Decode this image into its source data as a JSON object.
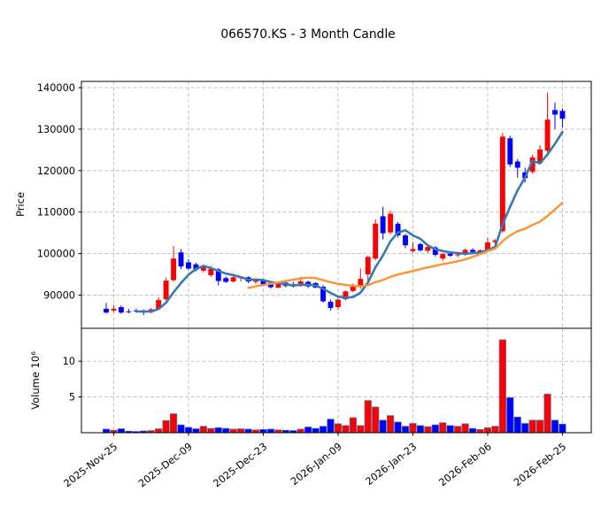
{
  "title": "066570.KS - 3 Month Candle",
  "price_axis": {
    "label": "Price",
    "tick_values": [
      90000,
      100000,
      110000,
      120000,
      130000,
      140000
    ],
    "range": [
      82000,
      141500
    ]
  },
  "volume_axis": {
    "label": "Volume  10⁶",
    "tick_values": [
      5,
      10
    ],
    "range": [
      0,
      14.6
    ],
    "unit": "millions"
  },
  "x_axis": {
    "tick_indices": [
      1,
      11,
      21,
      31,
      41,
      51,
      61
    ],
    "tick_labels": [
      "2025-Nov-25",
      "2025-Dec-09",
      "2025-Dec-23",
      "2026-Jan-09",
      "2026-Jan-23",
      "2026-Feb-06",
      "2026-Feb-25"
    ],
    "label_rotation_deg": -38
  },
  "colors": {
    "up": "#ff0000",
    "down": "#0000ff",
    "ma_fast": "#3778b5",
    "ma_slow": "#ff9233",
    "grid": "#b9b9b9",
    "frame": "#000000",
    "volume_edge": "#4a7aaa",
    "background": "#ffffff"
  },
  "moving_averages": [
    {
      "name": "ma-5day",
      "window": 5,
      "color_key": "ma_fast",
      "width": 2.6
    },
    {
      "name": "ma-20day",
      "window": 20,
      "color_key": "ma_slow",
      "width": 2.4
    }
  ],
  "chart_data": {
    "type": "candlestick",
    "title": "066570.KS - 3 Month Candle",
    "ylabel": "Price",
    "ylabel_volume": "Volume  10⁶",
    "grid": "dashed",
    "panels": [
      "price",
      "volume"
    ],
    "days": [
      {
        "date": "2025-11-24",
        "open": 86700,
        "high": 88100,
        "low": 85600,
        "close": 85800,
        "volume_m": 0.5
      },
      {
        "date": "2025-11-25",
        "open": 86300,
        "high": 87600,
        "low": 85900,
        "close": 86700,
        "volume_m": 0.35
      },
      {
        "date": "2025-11-26",
        "open": 87100,
        "high": 87500,
        "low": 85500,
        "close": 85800,
        "volume_m": 0.55
      },
      {
        "date": "2025-11-27",
        "open": 86100,
        "high": 86700,
        "low": 85600,
        "close": 85900,
        "volume_m": 0.22
      },
      {
        "date": "2025-11-28",
        "open": 86300,
        "high": 86700,
        "low": 85900,
        "close": 86100,
        "volume_m": 0.18
      },
      {
        "date": "2025-12-01",
        "open": 86200,
        "high": 86500,
        "low": 85200,
        "close": 85800,
        "volume_m": 0.25
      },
      {
        "date": "2025-12-02",
        "open": 85900,
        "high": 86900,
        "low": 85600,
        "close": 86600,
        "volume_m": 0.3
      },
      {
        "date": "2025-12-03",
        "open": 86700,
        "high": 89500,
        "low": 86400,
        "close": 88800,
        "volume_m": 0.55
      },
      {
        "date": "2025-12-04",
        "open": 89000,
        "high": 94200,
        "low": 88700,
        "close": 93500,
        "volume_m": 1.7
      },
      {
        "date": "2025-12-05",
        "open": 93600,
        "high": 101800,
        "low": 93300,
        "close": 98800,
        "volume_m": 2.65
      },
      {
        "date": "2025-12-08",
        "open": 100300,
        "high": 101100,
        "low": 96300,
        "close": 96900,
        "volume_m": 1.1
      },
      {
        "date": "2025-12-09",
        "open": 97900,
        "high": 98700,
        "low": 96000,
        "close": 96400,
        "volume_m": 0.75
      },
      {
        "date": "2025-12-10",
        "open": 97400,
        "high": 97800,
        "low": 95700,
        "close": 96100,
        "volume_m": 0.55
      },
      {
        "date": "2025-12-11",
        "open": 95900,
        "high": 97400,
        "low": 95500,
        "close": 96900,
        "volume_m": 0.9
      },
      {
        "date": "2025-12-12",
        "open": 94800,
        "high": 97000,
        "low": 94400,
        "close": 96300,
        "volume_m": 0.6
      },
      {
        "date": "2025-12-15",
        "open": 96200,
        "high": 96500,
        "low": 92300,
        "close": 93400,
        "volume_m": 0.7
      },
      {
        "date": "2025-12-16",
        "open": 94100,
        "high": 94500,
        "low": 92900,
        "close": 93200,
        "volume_m": 0.6
      },
      {
        "date": "2025-12-17",
        "open": 93300,
        "high": 94800,
        "low": 93000,
        "close": 94300,
        "volume_m": 0.5
      },
      {
        "date": "2025-12-18",
        "open": 94100,
        "high": 94600,
        "low": 93300,
        "close": 94400,
        "volume_m": 0.55
      },
      {
        "date": "2025-12-19",
        "open": 94300,
        "high": 94500,
        "low": 92900,
        "close": 93300,
        "volume_m": 0.5
      },
      {
        "date": "2025-12-22",
        "open": 93200,
        "high": 93900,
        "low": 92700,
        "close": 93600,
        "volume_m": 0.4
      },
      {
        "date": "2025-12-23",
        "open": 93700,
        "high": 93900,
        "low": 92100,
        "close": 92500,
        "volume_m": 0.45
      },
      {
        "date": "2025-12-24",
        "open": 92600,
        "high": 93100,
        "low": 91600,
        "close": 91900,
        "volume_m": 0.5
      },
      {
        "date": "2025-12-26",
        "open": 91800,
        "high": 93300,
        "low": 91600,
        "close": 92900,
        "volume_m": 0.4
      },
      {
        "date": "2025-12-29",
        "open": 93000,
        "high": 93200,
        "low": 91900,
        "close": 92200,
        "volume_m": 0.35
      },
      {
        "date": "2025-12-30",
        "open": 92400,
        "high": 93100,
        "low": 91800,
        "close": 92100,
        "volume_m": 0.3
      },
      {
        "date": "2026-01-02",
        "open": 92200,
        "high": 94400,
        "low": 92000,
        "close": 93300,
        "volume_m": 0.5
      },
      {
        "date": "2026-01-05",
        "open": 93200,
        "high": 93500,
        "low": 91700,
        "close": 92100,
        "volume_m": 0.8
      },
      {
        "date": "2026-01-06",
        "open": 92900,
        "high": 93100,
        "low": 91700,
        "close": 91800,
        "volume_m": 0.6
      },
      {
        "date": "2026-01-07",
        "open": 92000,
        "high": 92400,
        "low": 88200,
        "close": 88500,
        "volume_m": 0.9
      },
      {
        "date": "2026-01-08",
        "open": 88400,
        "high": 88900,
        "low": 86300,
        "close": 86900,
        "volume_m": 1.9
      },
      {
        "date": "2026-01-09",
        "open": 87100,
        "high": 89300,
        "low": 86400,
        "close": 88900,
        "volume_m": 1.25
      },
      {
        "date": "2026-01-12",
        "open": 89000,
        "high": 91200,
        "low": 88700,
        "close": 90900,
        "volume_m": 1.0
      },
      {
        "date": "2026-01-13",
        "open": 91000,
        "high": 92800,
        "low": 90700,
        "close": 92400,
        "volume_m": 2.1
      },
      {
        "date": "2026-01-14",
        "open": 92200,
        "high": 96400,
        "low": 91500,
        "close": 93900,
        "volume_m": 1.0
      },
      {
        "date": "2026-01-15",
        "open": 95000,
        "high": 99500,
        "low": 92200,
        "close": 99200,
        "volume_m": 4.5
      },
      {
        "date": "2026-01-16",
        "open": 98800,
        "high": 108300,
        "low": 98400,
        "close": 107200,
        "volume_m": 3.6
      },
      {
        "date": "2026-01-19",
        "open": 109000,
        "high": 111300,
        "low": 103400,
        "close": 104900,
        "volume_m": 1.75
      },
      {
        "date": "2026-01-20",
        "open": 105100,
        "high": 110400,
        "low": 104700,
        "close": 109600,
        "volume_m": 2.4
      },
      {
        "date": "2026-01-21",
        "open": 107200,
        "high": 107600,
        "low": 103900,
        "close": 104400,
        "volume_m": 1.5
      },
      {
        "date": "2026-01-22",
        "open": 104400,
        "high": 104800,
        "low": 101300,
        "close": 102000,
        "volume_m": 0.9
      },
      {
        "date": "2026-01-23",
        "open": 100600,
        "high": 102800,
        "low": 100200,
        "close": 101100,
        "volume_m": 1.3
      },
      {
        "date": "2026-01-26",
        "open": 102300,
        "high": 102600,
        "low": 100500,
        "close": 100800,
        "volume_m": 1.0
      },
      {
        "date": "2026-01-27",
        "open": 100700,
        "high": 101900,
        "low": 100200,
        "close": 101600,
        "volume_m": 0.85
      },
      {
        "date": "2026-01-28",
        "open": 101500,
        "high": 101800,
        "low": 99300,
        "close": 99700,
        "volume_m": 1.1
      },
      {
        "date": "2026-01-29",
        "open": 98800,
        "high": 100200,
        "low": 98300,
        "close": 99900,
        "volume_m": 1.4
      },
      {
        "date": "2026-01-30",
        "open": 100000,
        "high": 100400,
        "low": 99200,
        "close": 99500,
        "volume_m": 1.0
      },
      {
        "date": "2026-02-02",
        "open": 99600,
        "high": 100500,
        "low": 99100,
        "close": 99800,
        "volume_m": 0.9
      },
      {
        "date": "2026-02-03",
        "open": 99900,
        "high": 101200,
        "low": 99500,
        "close": 100900,
        "volume_m": 1.25
      },
      {
        "date": "2026-02-04",
        "open": 100900,
        "high": 101300,
        "low": 100100,
        "close": 100400,
        "volume_m": 0.6
      },
      {
        "date": "2026-02-05",
        "open": 100300,
        "high": 101000,
        "low": 99900,
        "close": 100800,
        "volume_m": 0.45
      },
      {
        "date": "2026-02-06",
        "open": 100900,
        "high": 103900,
        "low": 100700,
        "close": 102700,
        "volume_m": 0.7
      },
      {
        "date": "2026-02-09",
        "open": 102800,
        "high": 103500,
        "low": 100900,
        "close": 103200,
        "volume_m": 0.9
      },
      {
        "date": "2026-02-10",
        "open": 105400,
        "high": 129100,
        "low": 105000,
        "close": 128200,
        "volume_m": 13.0
      },
      {
        "date": "2026-02-11",
        "open": 127800,
        "high": 128400,
        "low": 120900,
        "close": 121500,
        "volume_m": 4.9
      },
      {
        "date": "2026-02-12",
        "open": 122200,
        "high": 122800,
        "low": 118300,
        "close": 120700,
        "volume_m": 2.2
      },
      {
        "date": "2026-02-13",
        "open": 119600,
        "high": 120700,
        "low": 117100,
        "close": 118200,
        "volume_m": 1.3
      },
      {
        "date": "2026-02-19",
        "open": 119700,
        "high": 123900,
        "low": 119300,
        "close": 123200,
        "volume_m": 1.75
      },
      {
        "date": "2026-02-20",
        "open": 121900,
        "high": 126100,
        "low": 121500,
        "close": 125100,
        "volume_m": 1.75
      },
      {
        "date": "2026-02-23",
        "open": 124800,
        "high": 138800,
        "low": 124300,
        "close": 132300,
        "volume_m": 5.4
      },
      {
        "date": "2026-02-24",
        "open": 134600,
        "high": 136400,
        "low": 130000,
        "close": 133500,
        "volume_m": 1.75
      },
      {
        "date": "2026-02-25",
        "open": 134400,
        "high": 135000,
        "low": 130400,
        "close": 132500,
        "volume_m": 1.2
      }
    ]
  }
}
